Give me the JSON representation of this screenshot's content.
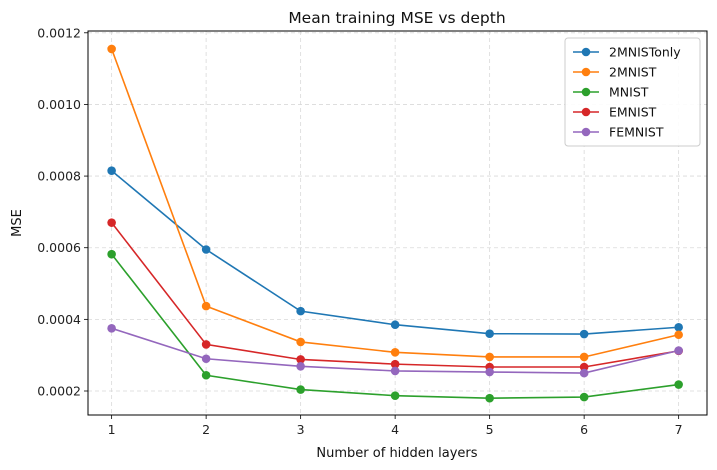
{
  "chart_data": {
    "type": "line",
    "title": "Mean training MSE vs depth",
    "xlabel": "Number of hidden layers",
    "ylabel": "MSE",
    "x": [
      1,
      2,
      3,
      4,
      5,
      6,
      7
    ],
    "xlim": [
      0.75,
      7.3
    ],
    "ylim": [
      0.000133,
      0.001205
    ],
    "yticks": [
      "0.0002",
      "0.0004",
      "0.0006",
      "0.0008",
      "0.0010",
      "0.0012"
    ],
    "ytick_values": [
      0.0002,
      0.0004,
      0.0006,
      0.0008,
      0.001,
      0.0012
    ],
    "xticks": [
      "1",
      "2",
      "3",
      "4",
      "5",
      "6",
      "7"
    ],
    "grid": true,
    "legend_position": "top-right",
    "series": [
      {
        "name": "2MNISTonly",
        "color": "#1f77b4",
        "values": [
          0.000815,
          0.000595,
          0.000423,
          0.000385,
          0.00036,
          0.000359,
          0.000378
        ]
      },
      {
        "name": "2MNIST",
        "color": "#ff7f0e",
        "values": [
          0.001155,
          0.000437,
          0.000337,
          0.000308,
          0.000295,
          0.000295,
          0.000357
        ]
      },
      {
        "name": "MNIST",
        "color": "#2ca02c",
        "values": [
          0.000582,
          0.000244,
          0.000204,
          0.000187,
          0.00018,
          0.000183,
          0.000218
        ]
      },
      {
        "name": "EMNIST",
        "color": "#d62728",
        "values": [
          0.00067,
          0.00033,
          0.000288,
          0.000275,
          0.000267,
          0.000267,
          0.000312
        ]
      },
      {
        "name": "FEMNIST",
        "color": "#9467bd",
        "values": [
          0.000375,
          0.00029,
          0.000269,
          0.000256,
          0.000253,
          0.00025,
          0.000313
        ]
      }
    ]
  }
}
